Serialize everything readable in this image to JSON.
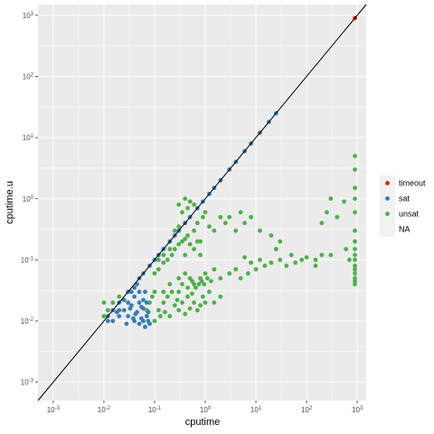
{
  "chart_data": {
    "type": "scatter",
    "xlabel": "cputime",
    "ylabel": "cputime.u",
    "x_scale": "log10",
    "y_scale": "log10",
    "xlim": [
      0.0005,
      1500
    ],
    "ylim": [
      0.0005,
      1500
    ],
    "x_ticks": [
      {
        "base": "10",
        "exp": "-3",
        "value": 0.001
      },
      {
        "base": "10",
        "exp": "-2",
        "value": 0.01
      },
      {
        "base": "10",
        "exp": "-1",
        "value": 0.1
      },
      {
        "base": "10",
        "exp": "0",
        "value": 1
      },
      {
        "base": "10",
        "exp": "1",
        "value": 10
      },
      {
        "base": "10",
        "exp": "2",
        "value": 100
      },
      {
        "base": "10",
        "exp": "3",
        "value": 1000
      }
    ],
    "y_ticks": [
      {
        "base": "10",
        "exp": "-3",
        "value": 0.001
      },
      {
        "base": "10",
        "exp": "-2",
        "value": 0.01
      },
      {
        "base": "10",
        "exp": "-1",
        "value": 0.1
      },
      {
        "base": "10",
        "exp": "0",
        "value": 1
      },
      {
        "base": "10",
        "exp": "1",
        "value": 10
      },
      {
        "base": "10",
        "exp": "2",
        "value": 100
      },
      {
        "base": "10",
        "exp": "3",
        "value": 1000
      }
    ],
    "reference_line": "y = x",
    "grid": true,
    "panel_background": "#ebebeb",
    "legend_position": "right",
    "legend": [
      {
        "label": "timeout",
        "color": "#e41a1c"
      },
      {
        "label": "sat",
        "color": "#377eb8"
      },
      {
        "label": "unsat",
        "color": "#4daf4a"
      },
      {
        "label": "NA",
        "color": "none"
      }
    ],
    "series": [
      {
        "name": "timeout",
        "color": "#e41a1c",
        "points": [
          [
            900,
            900
          ]
        ]
      },
      {
        "name": "sat",
        "color": "#377eb8",
        "points": [
          [
            25,
            25
          ],
          [
            18,
            18
          ],
          [
            12,
            12
          ],
          [
            8,
            8
          ],
          [
            6,
            6
          ],
          [
            4,
            4
          ],
          [
            3,
            3
          ],
          [
            2,
            2
          ],
          [
            1.5,
            1.5
          ],
          [
            1.2,
            1.2
          ],
          [
            0.9,
            0.9
          ],
          [
            0.7,
            0.7
          ],
          [
            0.5,
            0.5
          ],
          [
            0.4,
            0.4
          ],
          [
            0.3,
            0.3
          ],
          [
            0.25,
            0.25
          ],
          [
            0.2,
            0.2
          ],
          [
            0.15,
            0.15
          ],
          [
            0.12,
            0.12
          ],
          [
            0.1,
            0.1
          ],
          [
            0.08,
            0.08
          ],
          [
            0.06,
            0.06
          ],
          [
            0.05,
            0.05
          ],
          [
            0.04,
            0.035
          ],
          [
            0.03,
            0.03
          ],
          [
            0.02,
            0.02
          ],
          [
            0.015,
            0.015
          ],
          [
            0.012,
            0.012
          ],
          [
            0.015,
            0.01
          ],
          [
            0.02,
            0.012
          ],
          [
            0.025,
            0.015
          ],
          [
            0.03,
            0.012
          ],
          [
            0.035,
            0.018
          ],
          [
            0.04,
            0.01
          ],
          [
            0.045,
            0.014
          ],
          [
            0.05,
            0.009
          ],
          [
            0.055,
            0.011
          ],
          [
            0.06,
            0.016
          ],
          [
            0.065,
            0.008
          ],
          [
            0.07,
            0.012
          ],
          [
            0.075,
            0.01
          ],
          [
            0.08,
            0.009
          ],
          [
            0.05,
            0.02
          ],
          [
            0.04,
            0.025
          ],
          [
            0.06,
            0.022
          ],
          [
            0.03,
            0.02
          ],
          [
            0.035,
            0.03
          ],
          [
            0.045,
            0.04
          ],
          [
            0.02,
            0.015
          ],
          [
            0.025,
            0.022
          ],
          [
            0.028,
            0.009
          ],
          [
            0.012,
            0.01
          ],
          [
            0.018,
            0.014
          ],
          [
            0.07,
            0.02
          ],
          [
            0.065,
            0.03
          ],
          [
            0.05,
            0.03
          ],
          [
            0.042,
            0.013
          ],
          [
            0.038,
            0.011
          ],
          [
            0.033,
            0.016
          ],
          [
            0.055,
            0.017
          ],
          [
            0.06,
            0.01
          ],
          [
            0.075,
            0.014
          ]
        ]
      },
      {
        "name": "unsat",
        "color": "#4daf4a",
        "points": [
          [
            900,
            5
          ],
          [
            900,
            3
          ],
          [
            900,
            1.5
          ],
          [
            900,
            1
          ],
          [
            900,
            0.6
          ],
          [
            900,
            0.3
          ],
          [
            900,
            0.2
          ],
          [
            900,
            0.15
          ],
          [
            900,
            0.12
          ],
          [
            900,
            0.1
          ],
          [
            900,
            0.08
          ],
          [
            900,
            0.07
          ],
          [
            900,
            0.06
          ],
          [
            900,
            0.05
          ],
          [
            900,
            0.045
          ],
          [
            900,
            0.04
          ],
          [
            400,
            0.5
          ],
          [
            300,
            1
          ],
          [
            250,
            0.6
          ],
          [
            550,
            0.9
          ],
          [
            200,
            0.4
          ],
          [
            150,
            0.08
          ],
          [
            600,
            0.15
          ],
          [
            700,
            0.1
          ],
          [
            300,
            0.12
          ],
          [
            0.5,
            0.5
          ],
          [
            0.4,
            0.4
          ],
          [
            0.3,
            0.35
          ],
          [
            0.25,
            0.25
          ],
          [
            1,
            0.6
          ],
          [
            2,
            0.5
          ],
          [
            3,
            0.5
          ],
          [
            5,
            0.6
          ],
          [
            1.5,
            0.3
          ],
          [
            0.8,
            0.2
          ],
          [
            0.6,
            0.3
          ],
          [
            0.7,
            0.4
          ],
          [
            0.9,
            0.5
          ],
          [
            1.2,
            0.35
          ],
          [
            2.5,
            0.4
          ],
          [
            4,
            0.3
          ],
          [
            6,
            0.4
          ],
          [
            8,
            0.5
          ],
          [
            12,
            0.3
          ],
          [
            20,
            0.25
          ],
          [
            30,
            0.2
          ],
          [
            0.15,
            0.03
          ],
          [
            0.2,
            0.04
          ],
          [
            0.3,
            0.05
          ],
          [
            0.4,
            0.06
          ],
          [
            0.5,
            0.05
          ],
          [
            0.6,
            0.04
          ],
          [
            0.8,
            0.05
          ],
          [
            1,
            0.06
          ],
          [
            1.5,
            0.07
          ],
          [
            2,
            0.05
          ],
          [
            3,
            0.06
          ],
          [
            4,
            0.07
          ],
          [
            5,
            0.05
          ],
          [
            7,
            0.06
          ],
          [
            10,
            0.07
          ],
          [
            15,
            0.08
          ],
          [
            20,
            0.09
          ],
          [
            30,
            0.1
          ],
          [
            40,
            0.08
          ],
          [
            60,
            0.09
          ],
          [
            80,
            0.1
          ],
          [
            100,
            0.11
          ],
          [
            150,
            0.1
          ],
          [
            200,
            0.12
          ],
          [
            50,
            0.12
          ],
          [
            25,
            0.15
          ],
          [
            12,
            0.1
          ],
          [
            8,
            0.09
          ],
          [
            6,
            0.11
          ],
          [
            0.12,
            0.015
          ],
          [
            0.15,
            0.02
          ],
          [
            0.2,
            0.012
          ],
          [
            0.25,
            0.018
          ],
          [
            0.3,
            0.015
          ],
          [
            0.35,
            0.02
          ],
          [
            0.4,
            0.013
          ],
          [
            0.5,
            0.016
          ],
          [
            0.6,
            0.02
          ],
          [
            0.7,
            0.015
          ],
          [
            0.8,
            0.018
          ],
          [
            1,
            0.02
          ],
          [
            0.18,
            0.025
          ],
          [
            0.22,
            0.03
          ],
          [
            0.28,
            0.022
          ],
          [
            0.45,
            0.025
          ],
          [
            0.55,
            0.028
          ],
          [
            0.9,
            0.025
          ],
          [
            1.2,
            0.03
          ],
          [
            1.5,
            0.02
          ],
          [
            2,
            0.025
          ],
          [
            0.1,
            0.01
          ],
          [
            0.13,
            0.012
          ],
          [
            0.16,
            0.014
          ],
          [
            0.01,
            0.02
          ],
          [
            0.012,
            0.015
          ],
          [
            0.015,
            0.02
          ],
          [
            0.02,
            0.025
          ],
          [
            0.01,
            0.012
          ],
          [
            0.08,
            0.02
          ],
          [
            0.09,
            0.025
          ],
          [
            0.1,
            0.03
          ],
          [
            0.07,
            0.015
          ],
          [
            0.1,
            0.06
          ],
          [
            0.12,
            0.07
          ],
          [
            0.15,
            0.09
          ],
          [
            0.18,
            0.1
          ],
          [
            0.22,
            0.12
          ],
          [
            0.25,
            0.15
          ],
          [
            0.3,
            0.18
          ],
          [
            0.35,
            0.2
          ],
          [
            0.4,
            0.22
          ],
          [
            0.45,
            0.25
          ],
          [
            0.3,
            0.8
          ],
          [
            0.4,
            1
          ],
          [
            0.5,
            0.9
          ],
          [
            0.35,
            0.6
          ],
          [
            0.45,
            0.7
          ],
          [
            0.6,
            0.8
          ],
          [
            0.2,
            0.2
          ],
          [
            0.25,
            0.3
          ],
          [
            0.2,
            0.15
          ],
          [
            0.15,
            0.12
          ],
          [
            0.12,
            0.1
          ],
          [
            0.6,
            0.15
          ],
          [
            0.7,
            0.2
          ],
          [
            0.5,
            0.18
          ],
          [
            0.4,
            0.12
          ],
          [
            0.8,
            0.12
          ],
          [
            0.3,
            0.03
          ],
          [
            0.35,
            0.04
          ],
          [
            0.45,
            0.035
          ],
          [
            0.55,
            0.045
          ],
          [
            0.65,
            0.035
          ],
          [
            0.75,
            0.04
          ],
          [
            0.85,
            0.045
          ],
          [
            0.95,
            0.04
          ],
          [
            1.1,
            0.05
          ],
          [
            1.3,
            0.045
          ]
        ]
      }
    ]
  }
}
